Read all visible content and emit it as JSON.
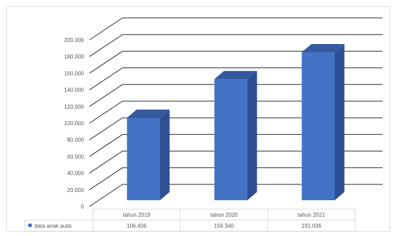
{
  "chart_data": {
    "type": "bar",
    "style": "3d-column",
    "categories": [
      "tahun 2019",
      "tahun 2020",
      "tahun 2021"
    ],
    "series": [
      {
        "name": "data anak autis",
        "values": [
          106406,
          156340,
          191036
        ],
        "display_values": [
          "106.406",
          "156.340",
          "191.036"
        ]
      }
    ],
    "ylim": [
      0,
      200000
    ],
    "yticks": [
      "0",
      "20.000",
      "40.000",
      "60.000",
      "80.000",
      "100.000",
      "120.000",
      "140.000",
      "160.000",
      "180.000",
      "200.000"
    ],
    "grid": true,
    "legend": "data table below plot",
    "colors": {
      "front": "#4472c4",
      "side": "#2f4f94",
      "top": "#35599f",
      "grid": "#262626"
    }
  }
}
